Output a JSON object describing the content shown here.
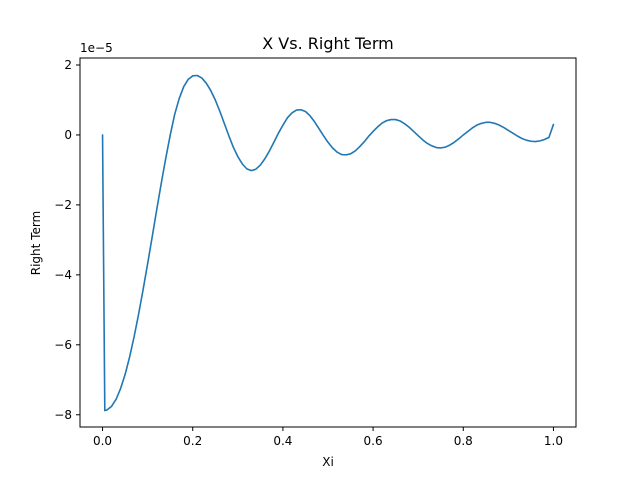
{
  "chart_data": {
    "type": "line",
    "title": "X Vs. Right Term",
    "xlabel": "Xi",
    "ylabel": "Right Term",
    "y_offset_label": "1e−5",
    "y_scale": 1e-05,
    "xlim": [
      -0.05,
      1.05
    ],
    "ylim": [
      -8.35,
      2.2
    ],
    "x_ticks": [
      0.0,
      0.2,
      0.4,
      0.6,
      0.8,
      1.0
    ],
    "x_tick_labels": [
      "0.0",
      "0.2",
      "0.4",
      "0.6",
      "0.8",
      "1.0"
    ],
    "y_ticks": [
      2,
      0,
      -2,
      -4,
      -6,
      -8
    ],
    "y_tick_labels": [
      "2",
      "0",
      "−2",
      "−4",
      "−6",
      "−8"
    ],
    "grid": false,
    "series": [
      {
        "color": "#1f77b4",
        "x": [
          0.0,
          0.005,
          0.01,
          0.02,
          0.03,
          0.04,
          0.05,
          0.06,
          0.07,
          0.08,
          0.09,
          0.1,
          0.11,
          0.12,
          0.13,
          0.14,
          0.15,
          0.16,
          0.17,
          0.18,
          0.19,
          0.2,
          0.21,
          0.22,
          0.23,
          0.24,
          0.25,
          0.26,
          0.27,
          0.28,
          0.29,
          0.3,
          0.31,
          0.32,
          0.33,
          0.34,
          0.35,
          0.36,
          0.37,
          0.38,
          0.39,
          0.4,
          0.41,
          0.42,
          0.43,
          0.44,
          0.45,
          0.46,
          0.47,
          0.48,
          0.49,
          0.5,
          0.51,
          0.52,
          0.53,
          0.54,
          0.55,
          0.56,
          0.57,
          0.58,
          0.59,
          0.6,
          0.61,
          0.62,
          0.63,
          0.64,
          0.65,
          0.66,
          0.67,
          0.68,
          0.69,
          0.7,
          0.71,
          0.72,
          0.73,
          0.74,
          0.75,
          0.76,
          0.77,
          0.78,
          0.79,
          0.8,
          0.81,
          0.82,
          0.83,
          0.84,
          0.85,
          0.86,
          0.87,
          0.88,
          0.89,
          0.9,
          0.91,
          0.92,
          0.93,
          0.94,
          0.95,
          0.96,
          0.97,
          0.98,
          0.99,
          1.0
        ],
        "y": [
          0.0,
          -7.88,
          -7.86,
          -7.76,
          -7.56,
          -7.25,
          -6.85,
          -6.35,
          -5.77,
          -5.12,
          -4.42,
          -3.68,
          -2.92,
          -2.15,
          -1.4,
          -0.68,
          -0.01,
          0.59,
          1.04,
          1.38,
          1.59,
          1.69,
          1.7,
          1.63,
          1.48,
          1.27,
          1.0,
          0.68,
          0.33,
          -0.02,
          -0.35,
          -0.62,
          -0.83,
          -0.97,
          -1.02,
          -0.98,
          -0.86,
          -0.68,
          -0.46,
          -0.21,
          0.05,
          0.28,
          0.49,
          0.63,
          0.71,
          0.72,
          0.67,
          0.55,
          0.38,
          0.18,
          -0.02,
          -0.21,
          -0.37,
          -0.49,
          -0.56,
          -0.57,
          -0.54,
          -0.46,
          -0.34,
          -0.2,
          -0.04,
          0.1,
          0.23,
          0.34,
          0.41,
          0.44,
          0.44,
          0.4,
          0.32,
          0.22,
          0.1,
          -0.02,
          -0.14,
          -0.24,
          -0.31,
          -0.36,
          -0.37,
          -0.35,
          -0.29,
          -0.21,
          -0.11,
          0.0,
          0.1,
          0.2,
          0.28,
          0.33,
          0.36,
          0.36,
          0.33,
          0.28,
          0.21,
          0.13,
          0.05,
          -0.03,
          -0.1,
          -0.15,
          -0.18,
          -0.19,
          -0.17,
          -0.13,
          -0.07,
          0.3
        ]
      }
    ]
  }
}
